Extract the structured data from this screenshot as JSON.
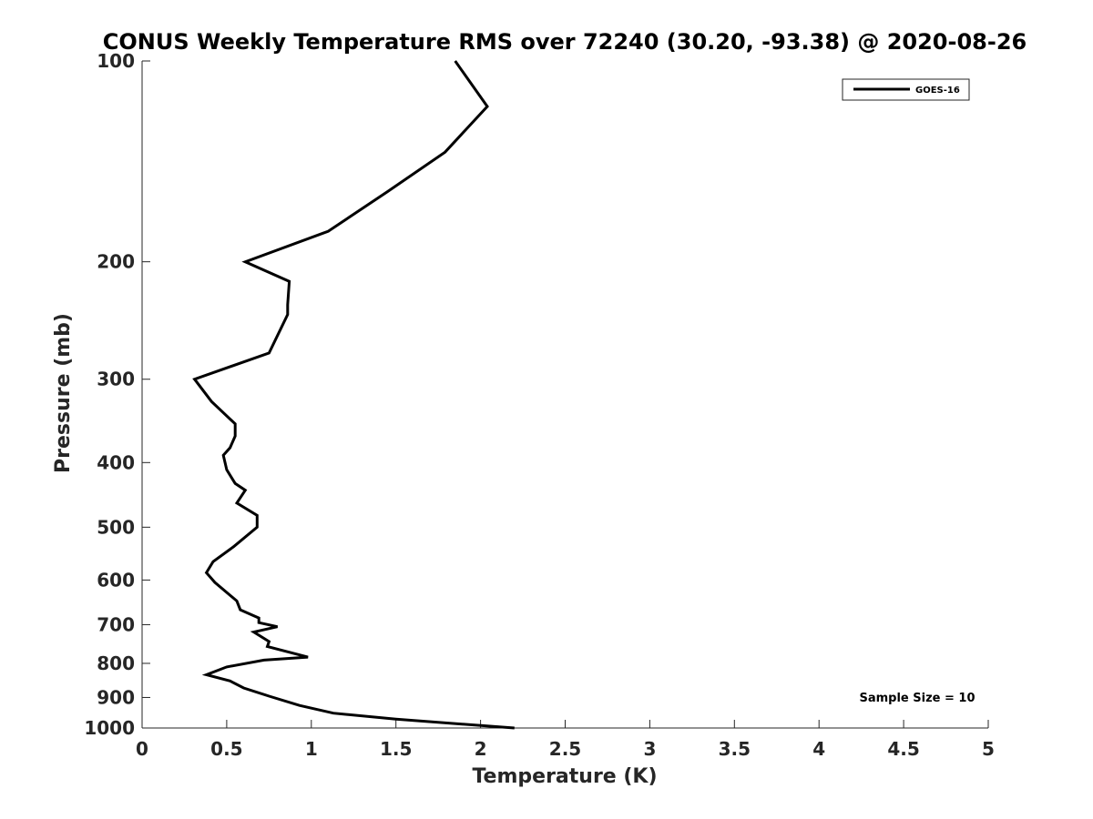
{
  "chart_data": {
    "type": "line",
    "title": "CONUS Weekly Temperature RMS over 72240 (30.20, -93.38) @ 2020-08-26",
    "xlabel": "Temperature (K)",
    "ylabel": "Pressure (mb)",
    "xlim": [
      0,
      5
    ],
    "ylim": [
      100,
      1000
    ],
    "y_scale": "log",
    "y_reversed": true,
    "x_ticks": [
      0,
      0.5,
      1,
      1.5,
      2,
      2.5,
      3,
      3.5,
      4,
      4.5,
      5
    ],
    "x_tick_labels": [
      "0",
      "0.5",
      "1",
      "1.5",
      "2",
      "2.5",
      "3",
      "3.5",
      "4",
      "4.5",
      "5"
    ],
    "y_ticks": [
      100,
      200,
      300,
      400,
      500,
      600,
      700,
      800,
      900,
      1000
    ],
    "y_tick_labels": [
      "100",
      "200",
      "300",
      "400",
      "500",
      "600",
      "700",
      "800",
      "900",
      "1000"
    ],
    "grid": false,
    "legend_position": "top-right",
    "annotation": "Sample Size = 10",
    "series": [
      {
        "name": "GOES-16",
        "color": "#000000",
        "x": [
          1.85,
          2.04,
          1.79,
          1.45,
          1.1,
          0.61,
          0.87,
          0.86,
          0.86,
          0.75,
          0.31,
          0.41,
          0.55,
          0.55,
          0.52,
          0.48,
          0.5,
          0.55,
          0.61,
          0.56,
          0.68,
          0.68,
          0.54,
          0.42,
          0.38,
          0.43,
          0.56,
          0.58,
          0.69,
          0.69,
          0.8,
          0.66,
          0.75,
          0.74,
          0.98,
          0.72,
          0.5,
          0.38,
          0.52,
          0.6,
          0.75,
          0.93,
          1.13,
          1.5,
          2.2
        ],
        "y": [
          100,
          117,
          137,
          157,
          180,
          200,
          214,
          232,
          240,
          274,
          300,
          324,
          350,
          365,
          380,
          390,
          410,
          430,
          440,
          460,
          480,
          500,
          535,
          563,
          585,
          605,
          645,
          665,
          684,
          695,
          705,
          718,
          742,
          755,
          783,
          791,
          810,
          832,
          850,
          871,
          896,
          925,
          950,
          970,
          1000
        ]
      }
    ]
  }
}
